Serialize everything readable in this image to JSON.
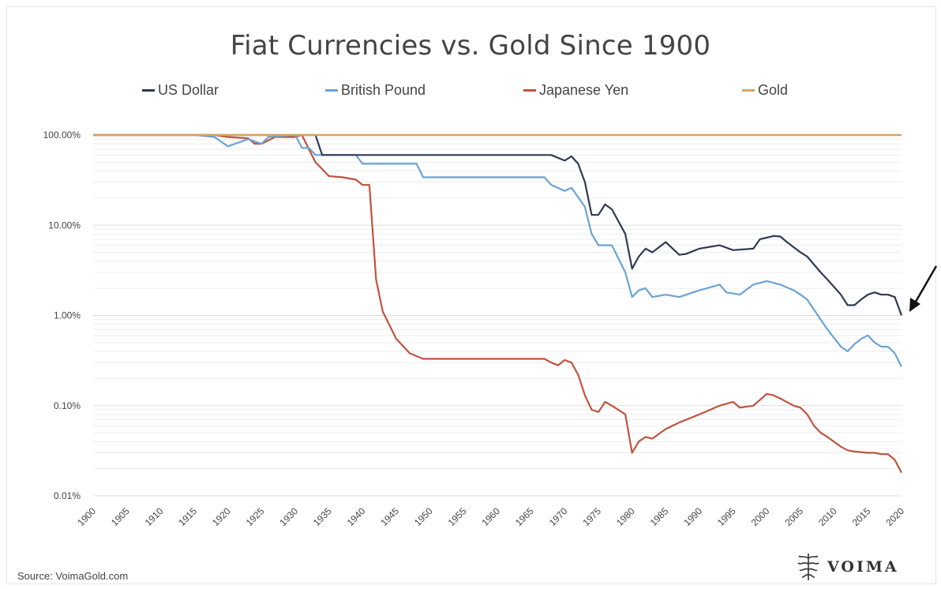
{
  "chart_data": {
    "type": "line",
    "title": "Fiat Currencies vs. Gold Since 1900",
    "xlabel": "",
    "ylabel": "",
    "x_ticks": [
      "1900",
      "1905",
      "1910",
      "1915",
      "1920",
      "1925",
      "1930",
      "1935",
      "1940",
      "1945",
      "1950",
      "1955",
      "1960",
      "1965",
      "1970",
      "1975",
      "1980",
      "1985",
      "1990",
      "1995",
      "2000",
      "2005",
      "2010",
      "2015",
      "2020"
    ],
    "y_scale": "log",
    "y_ticks": [
      "100.00%",
      "10.00%",
      "1.00%",
      "0.10%",
      "0.01%"
    ],
    "ylim": [
      0.01,
      100
    ],
    "xlim": [
      1900,
      2020
    ],
    "grid": "horizontal minor lines",
    "legend_position": "top",
    "series": [
      {
        "name": "US Dollar",
        "color": "#2e3a55",
        "points": [
          [
            1900,
            100
          ],
          [
            1933,
            100
          ],
          [
            1934,
            60
          ],
          [
            1968,
            60
          ],
          [
            1970,
            52
          ],
          [
            1971,
            58
          ],
          [
            1972,
            48
          ],
          [
            1973,
            30
          ],
          [
            1974,
            13
          ],
          [
            1975,
            13
          ],
          [
            1976,
            17
          ],
          [
            1977,
            15
          ],
          [
            1979,
            8
          ],
          [
            1980,
            3.3
          ],
          [
            1981,
            4.5
          ],
          [
            1982,
            5.5
          ],
          [
            1983,
            5.0
          ],
          [
            1985,
            6.5
          ],
          [
            1987,
            4.7
          ],
          [
            1988,
            4.8
          ],
          [
            1990,
            5.5
          ],
          [
            1993,
            6.0
          ],
          [
            1995,
            5.3
          ],
          [
            1998,
            5.5
          ],
          [
            1999,
            7.0
          ],
          [
            2001,
            7.6
          ],
          [
            2002,
            7.5
          ],
          [
            2003,
            6.5
          ],
          [
            2005,
            5.0
          ],
          [
            2006,
            4.5
          ],
          [
            2008,
            3.0
          ],
          [
            2009,
            2.5
          ],
          [
            2011,
            1.7
          ],
          [
            2012,
            1.3
          ],
          [
            2013,
            1.3
          ],
          [
            2014,
            1.5
          ],
          [
            2015,
            1.7
          ],
          [
            2016,
            1.8
          ],
          [
            2017,
            1.7
          ],
          [
            2018,
            1.7
          ],
          [
            2019,
            1.6
          ],
          [
            2020,
            1.0
          ]
        ]
      },
      {
        "name": "British Pound",
        "color": "#6aa3d5",
        "points": [
          [
            1900,
            100
          ],
          [
            1915,
            100
          ],
          [
            1918,
            95
          ],
          [
            1920,
            75
          ],
          [
            1923,
            90
          ],
          [
            1925,
            80
          ],
          [
            1926,
            95
          ],
          [
            1930,
            100
          ],
          [
            1931,
            72
          ],
          [
            1932,
            72
          ],
          [
            1933,
            60
          ],
          [
            1939,
            60
          ],
          [
            1940,
            48
          ],
          [
            1948,
            48
          ],
          [
            1949,
            34
          ],
          [
            1967,
            34
          ],
          [
            1968,
            28
          ],
          [
            1970,
            24
          ],
          [
            1971,
            26
          ],
          [
            1973,
            16
          ],
          [
            1974,
            8
          ],
          [
            1975,
            6
          ],
          [
            1977,
            6
          ],
          [
            1979,
            3.0
          ],
          [
            1980,
            1.6
          ],
          [
            1981,
            1.9
          ],
          [
            1982,
            2.0
          ],
          [
            1983,
            1.6
          ],
          [
            1985,
            1.7
          ],
          [
            1987,
            1.6
          ],
          [
            1990,
            1.9
          ],
          [
            1993,
            2.2
          ],
          [
            1994,
            1.8
          ],
          [
            1996,
            1.7
          ],
          [
            1998,
            2.2
          ],
          [
            2000,
            2.4
          ],
          [
            2001,
            2.3
          ],
          [
            2002,
            2.2
          ],
          [
            2004,
            1.9
          ],
          [
            2005,
            1.7
          ],
          [
            2006,
            1.5
          ],
          [
            2008,
            0.9
          ],
          [
            2009,
            0.7
          ],
          [
            2011,
            0.45
          ],
          [
            2012,
            0.4
          ],
          [
            2013,
            0.48
          ],
          [
            2014,
            0.55
          ],
          [
            2015,
            0.6
          ],
          [
            2016,
            0.5
          ],
          [
            2017,
            0.45
          ],
          [
            2018,
            0.45
          ],
          [
            2019,
            0.38
          ],
          [
            2020,
            0.27
          ]
        ]
      },
      {
        "name": "Japanese Yen",
        "color": "#c0533f",
        "points": [
          [
            1900,
            100
          ],
          [
            1918,
            100
          ],
          [
            1920,
            95
          ],
          [
            1923,
            92
          ],
          [
            1924,
            80
          ],
          [
            1925,
            80
          ],
          [
            1927,
            95
          ],
          [
            1930,
            95
          ],
          [
            1931,
            100
          ],
          [
            1932,
            70
          ],
          [
            1933,
            50
          ],
          [
            1935,
            35
          ],
          [
            1937,
            34
          ],
          [
            1939,
            32
          ],
          [
            1940,
            28
          ],
          [
            1941,
            28
          ],
          [
            1942,
            2.5
          ],
          [
            1943,
            1.1
          ],
          [
            1945,
            0.55
          ],
          [
            1947,
            0.38
          ],
          [
            1949,
            0.33
          ],
          [
            1967,
            0.33
          ],
          [
            1968,
            0.3
          ],
          [
            1969,
            0.28
          ],
          [
            1970,
            0.32
          ],
          [
            1971,
            0.3
          ],
          [
            1972,
            0.22
          ],
          [
            1973,
            0.13
          ],
          [
            1974,
            0.09
          ],
          [
            1975,
            0.085
          ],
          [
            1976,
            0.11
          ],
          [
            1977,
            0.1
          ],
          [
            1979,
            0.08
          ],
          [
            1980,
            0.03
          ],
          [
            1981,
            0.04
          ],
          [
            1982,
            0.045
          ],
          [
            1983,
            0.043
          ],
          [
            1985,
            0.055
          ],
          [
            1987,
            0.065
          ],
          [
            1990,
            0.08
          ],
          [
            1993,
            0.1
          ],
          [
            1995,
            0.11
          ],
          [
            1996,
            0.095
          ],
          [
            1998,
            0.1
          ],
          [
            2000,
            0.135
          ],
          [
            2001,
            0.13
          ],
          [
            2002,
            0.12
          ],
          [
            2004,
            0.1
          ],
          [
            2005,
            0.095
          ],
          [
            2006,
            0.08
          ],
          [
            2007,
            0.06
          ],
          [
            2008,
            0.05
          ],
          [
            2009,
            0.045
          ],
          [
            2011,
            0.035
          ],
          [
            2012,
            0.032
          ],
          [
            2013,
            0.031
          ],
          [
            2015,
            0.03
          ],
          [
            2016,
            0.03
          ],
          [
            2017,
            0.029
          ],
          [
            2018,
            0.029
          ],
          [
            2019,
            0.025
          ],
          [
            2020,
            0.018
          ]
        ]
      },
      {
        "name": "Gold",
        "color": "#d4a463",
        "points": [
          [
            1900,
            100
          ],
          [
            2020,
            100
          ]
        ]
      }
    ]
  },
  "footer": {
    "source": "Source: VoimaGold.com",
    "logo_text": "VOIMA"
  }
}
